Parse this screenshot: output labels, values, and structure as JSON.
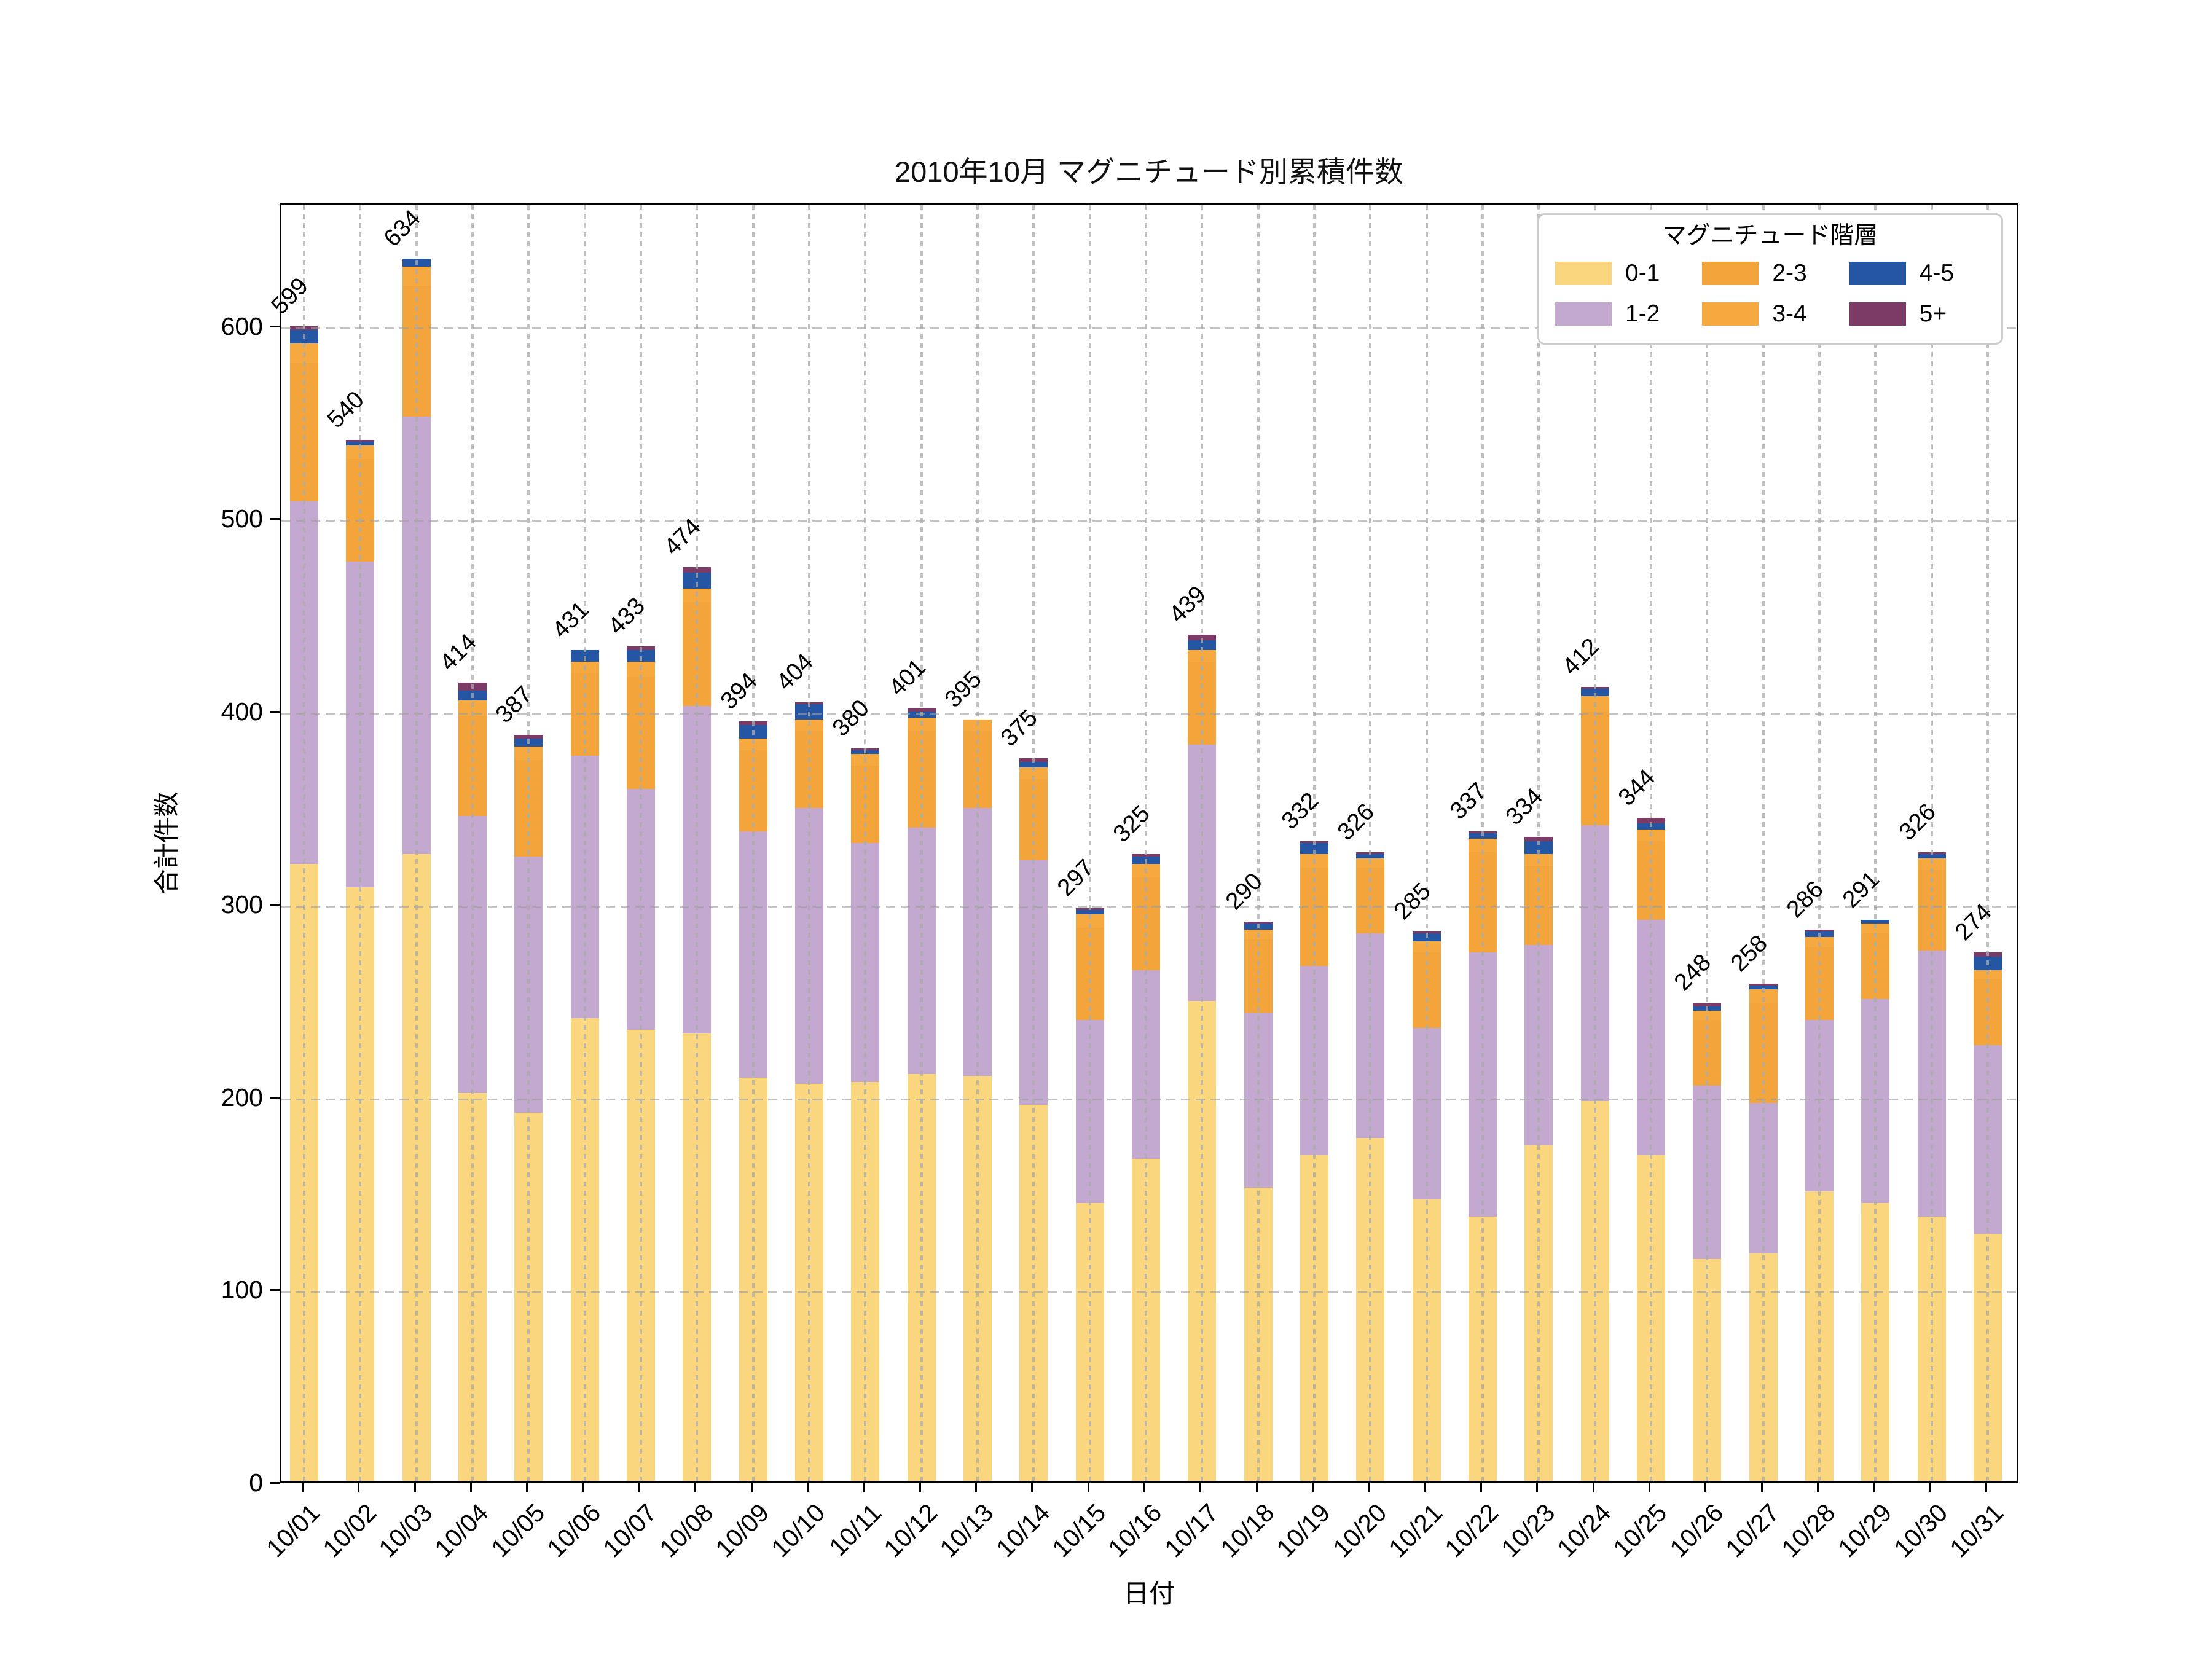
{
  "chart_data": {
    "type": "bar",
    "stacked": true,
    "title": "2010年10月 マグニチュード別累積件数",
    "xlabel": "日付",
    "ylabel": "合計件数",
    "legend_title": "マグニチュード階層",
    "grid": true,
    "legend_position": "upper right",
    "ylim": [
      0,
      664
    ],
    "yticks": [
      0,
      100,
      200,
      300,
      400,
      500,
      600
    ],
    "categories": [
      "10/01",
      "10/02",
      "10/03",
      "10/04",
      "10/05",
      "10/06",
      "10/07",
      "10/08",
      "10/09",
      "10/10",
      "10/11",
      "10/12",
      "10/13",
      "10/14",
      "10/15",
      "10/16",
      "10/17",
      "10/18",
      "10/19",
      "10/20",
      "10/21",
      "10/22",
      "10/23",
      "10/24",
      "10/25",
      "10/26",
      "10/27",
      "10/28",
      "10/29",
      "10/30",
      "10/31"
    ],
    "totals": [
      599,
      540,
      634,
      414,
      387,
      431,
      433,
      474,
      394,
      404,
      380,
      401,
      395,
      375,
      297,
      325,
      439,
      290,
      332,
      326,
      285,
      337,
      334,
      412,
      344,
      248,
      258,
      286,
      291,
      326,
      274
    ],
    "series": [
      {
        "name": "0-1",
        "color": "#FAD77E",
        "values": [
          320,
          308,
          325,
          201,
          191,
          240,
          234,
          232,
          209,
          206,
          207,
          211,
          210,
          195,
          144,
          167,
          249,
          152,
          169,
          178,
          146,
          137,
          174,
          197,
          169,
          115,
          118,
          150,
          144,
          137,
          128
        ]
      },
      {
        "name": "1-2",
        "color": "#C3A9CF",
        "values": [
          188,
          169,
          227,
          144,
          133,
          136,
          125,
          170,
          128,
          143,
          124,
          128,
          139,
          127,
          95,
          98,
          133,
          91,
          98,
          106,
          89,
          137,
          104,
          143,
          122,
          90,
          78,
          89,
          106,
          138,
          98
        ]
      },
      {
        "name": "2-3",
        "color": "#F3A53B",
        "values": [
          72,
          53,
          68,
          52,
          50,
          43,
          58,
          54,
          42,
          40,
          40,
          50,
          40,
          42,
          48,
          48,
          43,
          38,
          51,
          34,
          39,
          52,
          41,
          59,
          41,
          34,
          52,
          38,
          34,
          42,
          34
        ]
      },
      {
        "name": "3-4",
        "color": "#F6A93F",
        "values": [
          10,
          7,
          10,
          8,
          7,
          6,
          8,
          7,
          6,
          6,
          6,
          7,
          6,
          6,
          7,
          7,
          6,
          5,
          7,
          5,
          6,
          7,
          6,
          8,
          6,
          5,
          7,
          5,
          5,
          6,
          5
        ]
      },
      {
        "name": "4-5",
        "color": "#2456A4",
        "values": [
          7,
          2,
          4,
          5,
          4,
          6,
          6,
          8,
          7,
          8,
          2,
          3,
          0,
          3,
          2,
          4,
          5,
          3,
          6,
          2,
          4,
          3,
          7,
          4,
          3,
          2,
          2,
          3,
          2,
          2,
          7
        ]
      },
      {
        "name": "5+",
        "color": "#7C3A66",
        "values": [
          2,
          1,
          0,
          4,
          2,
          0,
          2,
          3,
          2,
          1,
          1,
          2,
          0,
          2,
          1,
          1,
          3,
          1,
          1,
          1,
          1,
          1,
          2,
          1,
          3,
          2,
          1,
          1,
          0,
          1,
          2
        ]
      }
    ]
  },
  "colors": {
    "grid": "#a8a8a8",
    "spine": "#000000",
    "background": "#ffffff",
    "legend_border": "#cccccc",
    "text": "#000000"
  }
}
